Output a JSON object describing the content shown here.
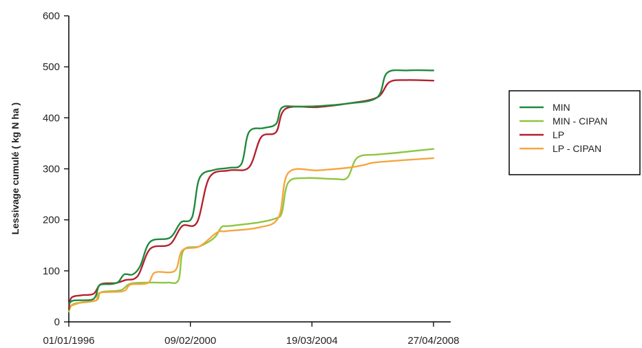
{
  "chart_data": {
    "type": "line",
    "title": "",
    "xlabel": "",
    "ylabel": "Lessivage cumulé ( kg N ha )",
    "ylim": [
      0,
      600
    ],
    "yticks": [
      0,
      100,
      200,
      300,
      400,
      500,
      600
    ],
    "xlim": [
      "1996-01-01",
      "2008-10-15"
    ],
    "xticks": [
      "01/01/1996",
      "09/02/2000",
      "19/03/2004",
      "27/04/2008"
    ],
    "legend_position": "right",
    "series": [
      {
        "name": "MIN",
        "color": "#1e8a3c",
        "points": [
          [
            "1996-01-01",
            35
          ],
          [
            "1996-03-01",
            42
          ],
          [
            "1996-10-01",
            43
          ],
          [
            "1996-12-01",
            52
          ],
          [
            "1997-01-15",
            72
          ],
          [
            "1997-06-01",
            74
          ],
          [
            "1997-09-01",
            78
          ],
          [
            "1997-11-15",
            93
          ],
          [
            "1998-03-01",
            93
          ],
          [
            "1998-06-01",
            110
          ],
          [
            "1998-10-01",
            157
          ],
          [
            "1999-06-01",
            165
          ],
          [
            "1999-10-15",
            195
          ],
          [
            "2000-03-01",
            205
          ],
          [
            "2000-06-01",
            282
          ],
          [
            "2000-12-01",
            298
          ],
          [
            "2001-06-01",
            302
          ],
          [
            "2001-11-01",
            310
          ],
          [
            "2002-02-01",
            372
          ],
          [
            "2002-08-01",
            380
          ],
          [
            "2003-01-01",
            388
          ],
          [
            "2003-03-15",
            420
          ],
          [
            "2003-10-01",
            422
          ],
          [
            "2004-06-01",
            423
          ],
          [
            "2005-06-01",
            428
          ],
          [
            "2006-06-01",
            440
          ],
          [
            "2006-10-01",
            488
          ],
          [
            "2007-06-01",
            493
          ],
          [
            "2008-04-27",
            493
          ]
        ]
      },
      {
        "name": "MIN - CIPAN",
        "color": "#8dc63f",
        "points": [
          [
            "1996-01-01",
            20
          ],
          [
            "1996-03-01",
            35
          ],
          [
            "1996-12-01",
            42
          ],
          [
            "1997-02-01",
            58
          ],
          [
            "1997-10-01",
            62
          ],
          [
            "1998-02-01",
            75
          ],
          [
            "1998-10-01",
            77
          ],
          [
            "1999-05-01",
            77
          ],
          [
            "1999-09-15",
            82
          ],
          [
            "1999-11-15",
            140
          ],
          [
            "2000-06-01",
            148
          ],
          [
            "2000-12-01",
            165
          ],
          [
            "2001-03-01",
            186
          ],
          [
            "2001-06-01",
            188
          ],
          [
            "2002-06-01",
            195
          ],
          [
            "2003-01-01",
            203
          ],
          [
            "2003-03-15",
            215
          ],
          [
            "2003-06-01",
            273
          ],
          [
            "2004-01-01",
            282
          ],
          [
            "2005-01-01",
            280
          ],
          [
            "2005-06-01",
            283
          ],
          [
            "2005-10-01",
            322
          ],
          [
            "2006-06-01",
            328
          ],
          [
            "2007-01-01",
            331
          ],
          [
            "2008-04-27",
            339
          ]
        ]
      },
      {
        "name": "LP",
        "color": "#b5202e",
        "points": [
          [
            "1996-01-01",
            25
          ],
          [
            "1996-02-01",
            47
          ],
          [
            "1996-06-01",
            52
          ],
          [
            "1996-11-01",
            55
          ],
          [
            "1997-02-01",
            74
          ],
          [
            "1997-08-01",
            76
          ],
          [
            "1997-12-01",
            82
          ],
          [
            "1998-05-01",
            90
          ],
          [
            "1998-10-01",
            143
          ],
          [
            "1999-06-01",
            152
          ],
          [
            "1999-11-01",
            188
          ],
          [
            "2000-05-01",
            195
          ],
          [
            "2000-10-01",
            283
          ],
          [
            "2001-06-01",
            297
          ],
          [
            "2002-02-01",
            303
          ],
          [
            "2002-07-01",
            362
          ],
          [
            "2003-01-01",
            372
          ],
          [
            "2003-05-01",
            418
          ],
          [
            "2004-06-01",
            421
          ],
          [
            "2005-06-01",
            428
          ],
          [
            "2006-06-01",
            440
          ],
          [
            "2006-11-01",
            470
          ],
          [
            "2007-06-01",
            474
          ],
          [
            "2008-04-27",
            473
          ]
        ]
      },
      {
        "name": "LP - CIPAN",
        "color": "#f6a540",
        "points": [
          [
            "1996-01-01",
            30
          ],
          [
            "1996-06-01",
            38
          ],
          [
            "1996-12-01",
            42
          ],
          [
            "1997-01-15",
            57
          ],
          [
            "1997-11-01",
            60
          ],
          [
            "1998-02-01",
            73
          ],
          [
            "1998-09-01",
            76
          ],
          [
            "1998-12-01",
            97
          ],
          [
            "1999-08-01",
            100
          ],
          [
            "1999-11-01",
            140
          ],
          [
            "2000-06-01",
            148
          ],
          [
            "2001-01-01",
            175
          ],
          [
            "2001-05-01",
            178
          ],
          [
            "2002-06-01",
            185
          ],
          [
            "2003-02-01",
            205
          ],
          [
            "2003-06-01",
            292
          ],
          [
            "2004-06-01",
            297
          ],
          [
            "2005-06-01",
            302
          ],
          [
            "2006-01-01",
            308
          ],
          [
            "2006-06-01",
            313
          ],
          [
            "2008-04-27",
            321
          ]
        ]
      }
    ]
  }
}
